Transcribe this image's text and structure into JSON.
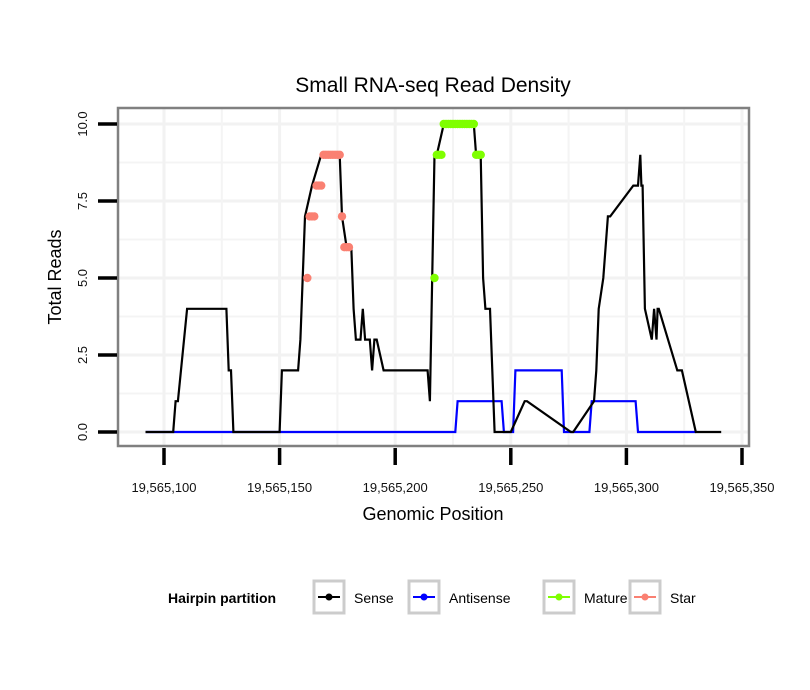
{
  "chart_data": {
    "type": "line",
    "title": "Small RNA-seq Read Density",
    "xlabel": "Genomic Position",
    "ylabel": "Total Reads",
    "xlim": [
      19565082,
      19565355
    ],
    "ylim": [
      -0.45,
      10.5
    ],
    "x_ticks": [
      19565100,
      19565150,
      19565200,
      19565250,
      19565300,
      19565350
    ],
    "x_tick_labels": [
      "19,565,100",
      "19,565,150",
      "19,565,200",
      "19,565,250",
      "19,565,300",
      "19,565,350"
    ],
    "y_ticks": [
      0,
      2.5,
      5,
      7.5,
      10
    ],
    "y_tick_labels": [
      "0.0",
      "2.5",
      "5.0",
      "7.5",
      "10.0"
    ],
    "grid": true,
    "legend": {
      "title": "Hairpin partition",
      "position": "bottom",
      "entries": [
        {
          "label": "Sense",
          "color": "#000000"
        },
        {
          "label": "Antisense",
          "color": "#0000ff"
        },
        {
          "label": "Mature",
          "color": "#7fff00"
        },
        {
          "label": "Star",
          "color": "#fa8072"
        }
      ]
    },
    "series": [
      {
        "name": "Sense",
        "color": "#000000",
        "kind": "line",
        "x": [
          19565092,
          19565104,
          19565105,
          19565106,
          19565110,
          19565127,
          19565128,
          19565129,
          19565130,
          19565150,
          19565151,
          19565158,
          19565159,
          19565160,
          19565161,
          19565164,
          19565168,
          19565176,
          19565177,
          19565179,
          19565181,
          19565182,
          19565183,
          19565185,
          19565186,
          19565187,
          19565189,
          19565190,
          19565191,
          19565192,
          19565195,
          19565196,
          19565214,
          19565215,
          19565217,
          19565218,
          19565221,
          19565234,
          19565235,
          19565237,
          19565238,
          19565239,
          19565241,
          19565243,
          19565250,
          19565256,
          19565257,
          19565276,
          19565277,
          19565286,
          19565287,
          19565288,
          19565290,
          19565291,
          19565292,
          19565293,
          19565303,
          19565305,
          19565306,
          19565306.5,
          19565307,
          19565308,
          19565311,
          19565312,
          19565313,
          19565313.5,
          19565314,
          19565322,
          19565324,
          19565330,
          19565331,
          19565341
        ],
        "y": [
          0,
          0,
          1,
          1,
          4,
          4,
          2,
          2,
          0,
          0,
          2,
          2,
          3,
          5,
          7,
          8,
          9,
          9,
          7,
          6,
          6,
          4,
          3,
          3,
          4,
          3,
          3,
          2,
          3,
          3,
          2,
          2,
          2,
          1,
          9,
          9,
          10,
          10,
          9,
          9,
          5,
          4,
          4,
          0,
          0,
          1,
          1,
          0,
          0,
          1,
          2,
          4,
          5,
          6,
          7,
          7,
          8,
          8,
          9,
          8,
          8,
          4,
          3,
          4,
          3,
          4,
          4,
          2,
          2,
          0,
          0,
          0
        ]
      },
      {
        "name": "Antisense",
        "color": "#0000ff",
        "kind": "line",
        "x": [
          19565092,
          19565226,
          19565227,
          19565246,
          19565247,
          19565251,
          19565252,
          19565272,
          19565273,
          19565284,
          19565285,
          19565304,
          19565305,
          19565330
        ],
        "y": [
          0,
          0,
          1,
          1,
          0,
          0,
          2,
          2,
          0,
          0,
          1,
          1,
          0,
          0
        ]
      },
      {
        "name": "Mature",
        "color": "#7fff00",
        "kind": "points",
        "x": [
          19565217,
          19565218,
          19565219,
          19565220,
          19565221,
          19565222,
          19565223,
          19565224,
          19565225,
          19565226,
          19565227,
          19565228,
          19565229,
          19565230,
          19565231,
          19565232,
          19565233,
          19565234,
          19565235,
          19565236,
          19565237
        ],
        "y": [
          5,
          9,
          9,
          9,
          10,
          10,
          10,
          10,
          10,
          10,
          10,
          10,
          10,
          10,
          10,
          10,
          10,
          10,
          9,
          9,
          9
        ]
      },
      {
        "name": "Star",
        "color": "#fa8072",
        "kind": "points",
        "x": [
          19565162,
          19565163,
          19565164,
          19565165,
          19565166,
          19565167,
          19565168,
          19565169,
          19565170,
          19565171,
          19565172,
          19565173,
          19565174,
          19565175,
          19565176,
          19565177,
          19565178,
          19565179,
          19565180
        ],
        "y": [
          5,
          7,
          7,
          7,
          8,
          8,
          8,
          9,
          9,
          9,
          9,
          9,
          9,
          9,
          9,
          7,
          6,
          6,
          6
        ]
      }
    ]
  }
}
